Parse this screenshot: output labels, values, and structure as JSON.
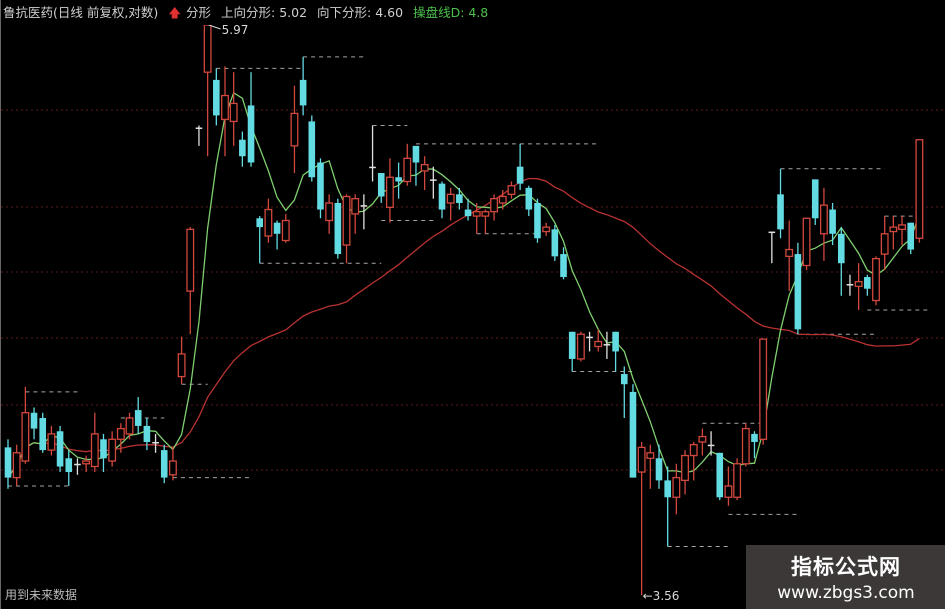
{
  "header": {
    "title": "鲁抗医药(日线 前复权,对数)",
    "indicator": "分形",
    "up_fractal_label": "上向分形: 5.02",
    "down_fractal_label": "向下分形: 4.60",
    "line_label": "操盘线D: 4.8"
  },
  "footnote": "用到未来数据",
  "watermark": {
    "title": "指标公式网",
    "url": "www.zbgs3.com"
  },
  "colors": {
    "up": "#d2483e",
    "down": "#63dbe3",
    "short_line": "#7fcf6f",
    "long_line": "#b83232",
    "fractal": "#cfcfcf",
    "grid": "#5a1c1c"
  },
  "chart_data": {
    "type": "candlestick",
    "y_scale": "log",
    "ylim": [
      3.56,
      5.97
    ],
    "annotations": [
      {
        "label": "5.97",
        "candle": 23,
        "price": 5.97
      },
      {
        "label": "←3.56",
        "candle": 73,
        "price": 3.56
      }
    ],
    "candles": [
      [
        4.07,
        4.1,
        3.92,
        3.96
      ],
      [
        3.96,
        4.08,
        3.93,
        4.05
      ],
      [
        4.02,
        4.3,
        4.01,
        4.2
      ],
      [
        4.2,
        4.22,
        4.1,
        4.14
      ],
      [
        4.18,
        4.2,
        4.05,
        4.06
      ],
      [
        4.06,
        4.15,
        4.04,
        4.12
      ],
      [
        4.13,
        4.15,
        3.98,
        4.0
      ],
      [
        4.03,
        4.06,
        3.93,
        3.98
      ],
      [
        4.01,
        4.03,
        3.97,
        4.01
      ],
      [
        4.01,
        4.04,
        3.98,
        4.02
      ],
      [
        4.0,
        4.2,
        3.98,
        4.12
      ],
      [
        4.1,
        4.12,
        3.98,
        4.03
      ],
      [
        4.02,
        4.13,
        4.0,
        4.1
      ],
      [
        4.1,
        4.16,
        4.05,
        4.14
      ],
      [
        4.12,
        4.2,
        4.1,
        4.18
      ],
      [
        4.21,
        4.26,
        4.12,
        4.15
      ],
      [
        4.15,
        4.18,
        4.06,
        4.09
      ],
      [
        4.09,
        4.12,
        4.05,
        4.09
      ],
      [
        4.06,
        4.08,
        3.94,
        3.96
      ],
      [
        3.97,
        4.07,
        3.95,
        4.02
      ],
      [
        4.34,
        4.5,
        4.31,
        4.43
      ],
      [
        4.69,
        4.97,
        4.51,
        4.96
      ],
      [
        5.44,
        5.45,
        5.35,
        5.44
      ],
      [
        5.72,
        5.97,
        5.3,
        5.97
      ],
      [
        5.68,
        5.74,
        5.45,
        5.5
      ],
      [
        5.48,
        5.75,
        5.3,
        5.6
      ],
      [
        5.47,
        5.72,
        5.35,
        5.56
      ],
      [
        5.38,
        5.42,
        5.25,
        5.3
      ],
      [
        5.55,
        5.72,
        5.25,
        5.27
      ],
      [
        5.01,
        5.02,
        4.81,
        4.97
      ],
      [
        4.93,
        5.1,
        4.9,
        5.05
      ],
      [
        4.99,
        5.0,
        4.87,
        4.94
      ],
      [
        4.91,
        5.03,
        4.9,
        5.0
      ],
      [
        5.35,
        5.65,
        5.22,
        5.51
      ],
      [
        5.68,
        5.8,
        5.5,
        5.55
      ],
      [
        5.47,
        5.5,
        5.18,
        5.2
      ],
      [
        5.27,
        5.29,
        5.01,
        5.05
      ],
      [
        5.0,
        5.12,
        4.94,
        5.08
      ],
      [
        5.08,
        5.1,
        4.83,
        4.85
      ],
      [
        4.89,
        5.12,
        4.81,
        5.11
      ],
      [
        5.03,
        5.12,
        4.94,
        5.1
      ],
      [
        5.07,
        5.12,
        4.96,
        5.07
      ],
      [
        5.25,
        5.45,
        5.18,
        5.25
      ],
      [
        5.22,
        5.22,
        5.08,
        5.11
      ],
      [
        5.06,
        5.29,
        4.99,
        5.2
      ],
      [
        5.2,
        5.27,
        5.1,
        5.18
      ],
      [
        5.18,
        5.36,
        5.16,
        5.29
      ],
      [
        5.35,
        5.35,
        5.16,
        5.27
      ],
      [
        5.23,
        5.3,
        5.14,
        5.26
      ],
      [
        5.19,
        5.25,
        5.1,
        5.19
      ],
      [
        5.17,
        5.18,
        5.01,
        5.05
      ],
      [
        5.08,
        5.15,
        5.0,
        5.12
      ],
      [
        5.12,
        5.15,
        5.05,
        5.08
      ],
      [
        5.05,
        5.1,
        5.0,
        5.02
      ],
      [
        5.02,
        5.08,
        4.94,
        5.04
      ],
      [
        5.02,
        5.05,
        4.94,
        5.04
      ],
      [
        5.04,
        5.12,
        5.0,
        5.1
      ],
      [
        5.08,
        5.14,
        5.05,
        5.11
      ],
      [
        5.12,
        5.18,
        5.1,
        5.16
      ],
      [
        5.25,
        5.36,
        5.14,
        5.17
      ],
      [
        5.15,
        5.16,
        5.02,
        5.05
      ],
      [
        5.08,
        5.1,
        4.9,
        4.92
      ],
      [
        4.95,
        4.99,
        4.93,
        4.97
      ],
      [
        4.96,
        4.98,
        4.82,
        4.84
      ],
      [
        4.85,
        4.88,
        4.74,
        4.75
      ],
      [
        4.52,
        4.52,
        4.36,
        4.41
      ],
      [
        4.41,
        4.52,
        4.4,
        4.51
      ],
      [
        4.5,
        4.52,
        4.44,
        4.5
      ],
      [
        4.46,
        4.53,
        4.44,
        4.48
      ],
      [
        4.47,
        4.52,
        4.41,
        4.47
      ],
      [
        4.52,
        4.52,
        4.36,
        4.44
      ],
      [
        4.35,
        4.38,
        4.18,
        4.31
      ],
      [
        4.28,
        4.31,
        3.96,
        3.96
      ],
      [
        3.98,
        4.09,
        3.56,
        4.07
      ],
      [
        4.03,
        4.08,
        3.92,
        4.05
      ],
      [
        4.03,
        4.08,
        3.92,
        3.95
      ],
      [
        3.95,
        4.0,
        3.72,
        3.89
      ],
      [
        3.89,
        4.01,
        3.83,
        3.96
      ],
      [
        3.95,
        4.06,
        3.9,
        4.04
      ],
      [
        4.04,
        4.09,
        3.95,
        4.08
      ],
      [
        4.09,
        4.14,
        4.04,
        4.11
      ],
      [
        4.08,
        4.13,
        4.04,
        4.08
      ],
      [
        4.05,
        4.05,
        3.88,
        3.89
      ],
      [
        3.89,
        4.0,
        3.86,
        3.93
      ],
      [
        3.89,
        4.03,
        3.88,
        4.01
      ],
      [
        4.01,
        4.16,
        4.0,
        4.14
      ],
      [
        4.12,
        4.13,
        4.03,
        4.09
      ],
      [
        4.1,
        4.49,
        4.08,
        4.49
      ],
      [
        4.95,
        4.95,
        4.81,
        4.95
      ],
      [
        5.12,
        5.24,
        4.92,
        4.96
      ],
      [
        4.84,
        5.0,
        4.69,
        4.87
      ],
      [
        4.85,
        4.9,
        4.51,
        4.53
      ],
      [
        4.8,
        5.01,
        4.78,
        5.01
      ],
      [
        5.19,
        5.19,
        4.98,
        5.01
      ],
      [
        4.94,
        5.15,
        4.82,
        5.07
      ],
      [
        5.05,
        5.08,
        4.89,
        4.94
      ],
      [
        4.94,
        4.97,
        4.67,
        4.81
      ],
      [
        4.72,
        4.76,
        4.67,
        4.72
      ],
      [
        4.71,
        4.81,
        4.61,
        4.73
      ],
      [
        4.75,
        4.76,
        4.67,
        4.7
      ],
      [
        4.65,
        4.84,
        4.63,
        4.83
      ],
      [
        4.85,
        5.02,
        4.78,
        4.94
      ],
      [
        4.95,
        5.02,
        4.87,
        4.97
      ],
      [
        4.96,
        5.02,
        4.89,
        4.98
      ],
      [
        4.99,
        4.99,
        4.85,
        4.87
      ],
      [
        4.92,
        5.38,
        4.9,
        5.38
      ]
    ],
    "fractal_levels": [
      {
        "price": 4.28,
        "from": 2,
        "to": 8
      },
      {
        "price": 3.93,
        "from": 0,
        "to": 7
      },
      {
        "price": 4.18,
        "from": 13,
        "to": 18
      },
      {
        "price": 3.96,
        "from": 19,
        "to": 28
      },
      {
        "price": 4.31,
        "from": 20,
        "to": 23
      },
      {
        "price": 5.8,
        "from": 34,
        "to": 41
      },
      {
        "price": 5.74,
        "from": 24,
        "to": 34
      },
      {
        "price": 4.81,
        "from": 29,
        "to": 43
      },
      {
        "price": 5.45,
        "from": 42,
        "to": 46
      },
      {
        "price": 5.36,
        "from": 47,
        "to": 68
      },
      {
        "price": 5.0,
        "from": 43,
        "to": 49
      },
      {
        "price": 4.94,
        "from": 54,
        "to": 61
      },
      {
        "price": 4.36,
        "from": 65,
        "to": 72
      },
      {
        "price": 3.72,
        "from": 76,
        "to": 83
      },
      {
        "price": 3.83,
        "from": 83,
        "to": 91
      },
      {
        "price": 4.16,
        "from": 80,
        "to": 87
      },
      {
        "price": 5.24,
        "from": 89,
        "to": 101
      },
      {
        "price": 4.51,
        "from": 91,
        "to": 100
      },
      {
        "price": 4.61,
        "from": 99,
        "to": 106
      },
      {
        "price": 5.02,
        "from": 101,
        "to": 105
      }
    ]
  }
}
